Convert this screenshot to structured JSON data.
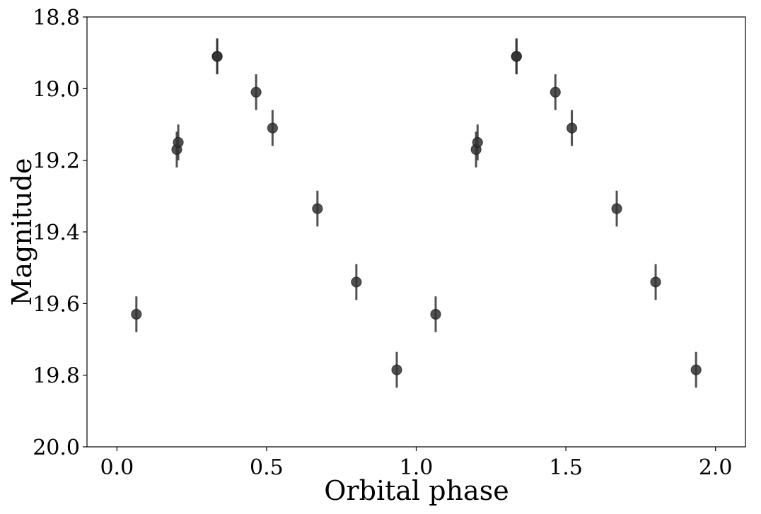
{
  "chart_data": {
    "type": "scatter",
    "title": "",
    "xlabel": "Orbital phase",
    "ylabel": "Magnitude",
    "xlim": [
      -0.1,
      2.1
    ],
    "ylim": [
      20.0,
      18.8
    ],
    "y_inverted": true,
    "grid": false,
    "legend": "none",
    "xticks": [
      0.0,
      0.5,
      1.0,
      1.5,
      2.0
    ],
    "xtick_labels": [
      "0.0",
      "0.5",
      "1.0",
      "1.5",
      "2.0"
    ],
    "yticks": [
      18.8,
      19.0,
      19.2,
      19.4,
      19.6,
      19.8,
      20.0
    ],
    "ytick_labels": [
      "18.8",
      "19.0",
      "19.2",
      "19.4",
      "19.6",
      "19.8",
      "20.0"
    ],
    "marker_color": "#333333",
    "errorbar_color": "#333333",
    "points": [
      {
        "x": 0.065,
        "y": 19.63,
        "err": 0.05
      },
      {
        "x": 0.2,
        "y": 19.17,
        "err": 0.05
      },
      {
        "x": 0.205,
        "y": 19.15,
        "err": 0.05
      },
      {
        "x": 0.335,
        "y": 18.91,
        "err": 0.05
      },
      {
        "x": 0.335,
        "y": 18.91,
        "err": 0.05
      },
      {
        "x": 0.465,
        "y": 19.01,
        "err": 0.05
      },
      {
        "x": 0.52,
        "y": 19.11,
        "err": 0.05
      },
      {
        "x": 0.67,
        "y": 19.335,
        "err": 0.05
      },
      {
        "x": 0.8,
        "y": 19.54,
        "err": 0.05
      },
      {
        "x": 0.935,
        "y": 19.785,
        "err": 0.05
      },
      {
        "x": 1.065,
        "y": 19.63,
        "err": 0.05
      },
      {
        "x": 1.2,
        "y": 19.17,
        "err": 0.05
      },
      {
        "x": 1.205,
        "y": 19.15,
        "err": 0.05
      },
      {
        "x": 1.335,
        "y": 18.91,
        "err": 0.05
      },
      {
        "x": 1.335,
        "y": 18.91,
        "err": 0.05
      },
      {
        "x": 1.465,
        "y": 19.01,
        "err": 0.05
      },
      {
        "x": 1.52,
        "y": 19.11,
        "err": 0.05
      },
      {
        "x": 1.67,
        "y": 19.335,
        "err": 0.05
      },
      {
        "x": 1.8,
        "y": 19.54,
        "err": 0.05
      },
      {
        "x": 1.935,
        "y": 19.785,
        "err": 0.05
      }
    ]
  }
}
